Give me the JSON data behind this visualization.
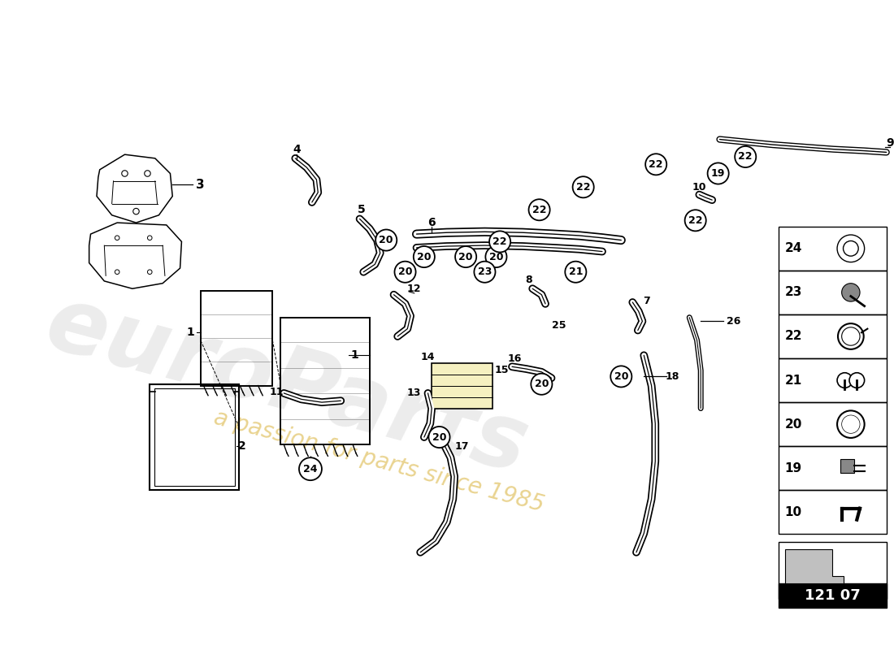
{
  "background_color": "#ffffff",
  "page_code": "121 07",
  "legend_parts": [
    24,
    23,
    22,
    21,
    20,
    19,
    10
  ],
  "watermark_color": "#c8c8c8",
  "watermark_gold": "#d4a820"
}
